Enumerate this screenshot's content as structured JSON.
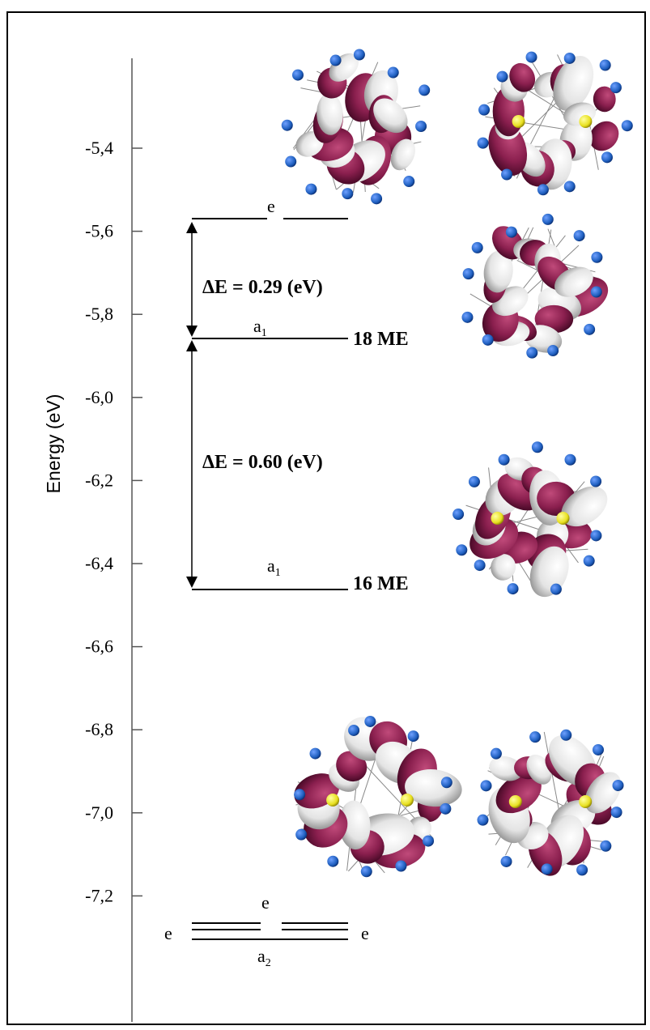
{
  "axis": {
    "title": "Energy (eV)",
    "ticks": [
      "-5,4",
      "-5,6",
      "-5,8",
      "-6,0",
      "-6,2",
      "-6,4",
      "-6,6",
      "-6,8",
      "-7,0",
      "-7,2"
    ]
  },
  "levels": {
    "lumo_plus_label": "e",
    "upper_a1_label": "a",
    "upper_a1_sub": "1",
    "upper_me_label": "18 ME",
    "lower_a1_label": "a",
    "lower_a1_sub": "1",
    "lower_me_label": "16 ME",
    "bottom_e_top": "e",
    "bottom_e_left": "e",
    "bottom_e_right": "e",
    "bottom_a2_label": "a",
    "bottom_a2_sub": "2"
  },
  "gaps": {
    "upper": "ΔE = 0.29 (eV)",
    "lower": "ΔE = 0.60 (eV)"
  },
  "orbital_colors": {
    "lobe_dark": "#8a1f4e",
    "lobe_light": "#e8e8e8",
    "atom_blue": "#1f5fbf",
    "atom_yellow": "#e8e020"
  },
  "chart_data": {
    "type": "energy-level-diagram",
    "ylabel": "Energy (eV)",
    "ylim": [
      -7.45,
      -5.2
    ],
    "levels": [
      {
        "symmetry": "e",
        "energy": -5.56
      },
      {
        "symmetry": "a1",
        "energy": -5.85,
        "electrons": "18 ME"
      },
      {
        "symmetry": "a1",
        "energy": -6.46,
        "electrons": "16 ME"
      },
      {
        "symmetry": "e",
        "energy": -7.24
      },
      {
        "symmetry": "e",
        "energy": -7.26
      },
      {
        "symmetry": "a2",
        "energy": -7.28
      }
    ],
    "gaps_eV": [
      0.29,
      0.6
    ]
  }
}
